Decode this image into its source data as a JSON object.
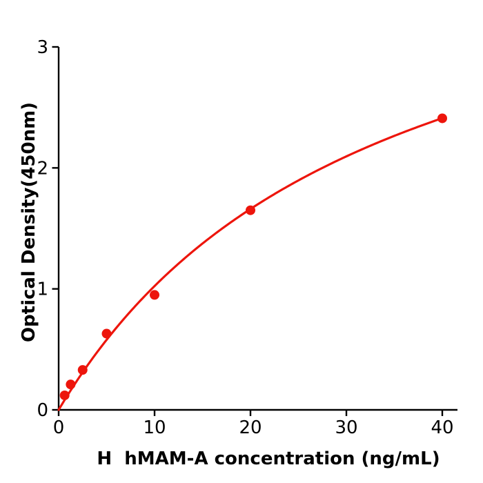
{
  "chart_data": {
    "type": "scatter",
    "title": "",
    "xlabel": "H  hMAM-A concentration (ng/mL)",
    "ylabel": "Optical Density(450nm)",
    "points": [
      {
        "x": 0.625,
        "y": 0.12
      },
      {
        "x": 1.25,
        "y": 0.21
      },
      {
        "x": 2.5,
        "y": 0.33
      },
      {
        "x": 5,
        "y": 0.63
      },
      {
        "x": 10,
        "y": 0.95
      },
      {
        "x": 20,
        "y": 1.65
      },
      {
        "x": 40,
        "y": 2.41
      }
    ],
    "fit_curve": {
      "type": "saturation",
      "formula": "y = a*x/(b+x)",
      "a": 4.4,
      "b": 33,
      "x_start": 0,
      "x_end": 40
    },
    "xticks": [
      0,
      10,
      20,
      30,
      40
    ],
    "yticks": [
      0,
      1,
      2,
      3
    ],
    "xlim": [
      0,
      41.6
    ],
    "ylim": [
      0,
      3
    ],
    "grid": false,
    "legend": null,
    "marker_color": "#ed150c",
    "line_color": "#ed150c",
    "axis_color": "#000000",
    "background_color": "#ffffff"
  }
}
